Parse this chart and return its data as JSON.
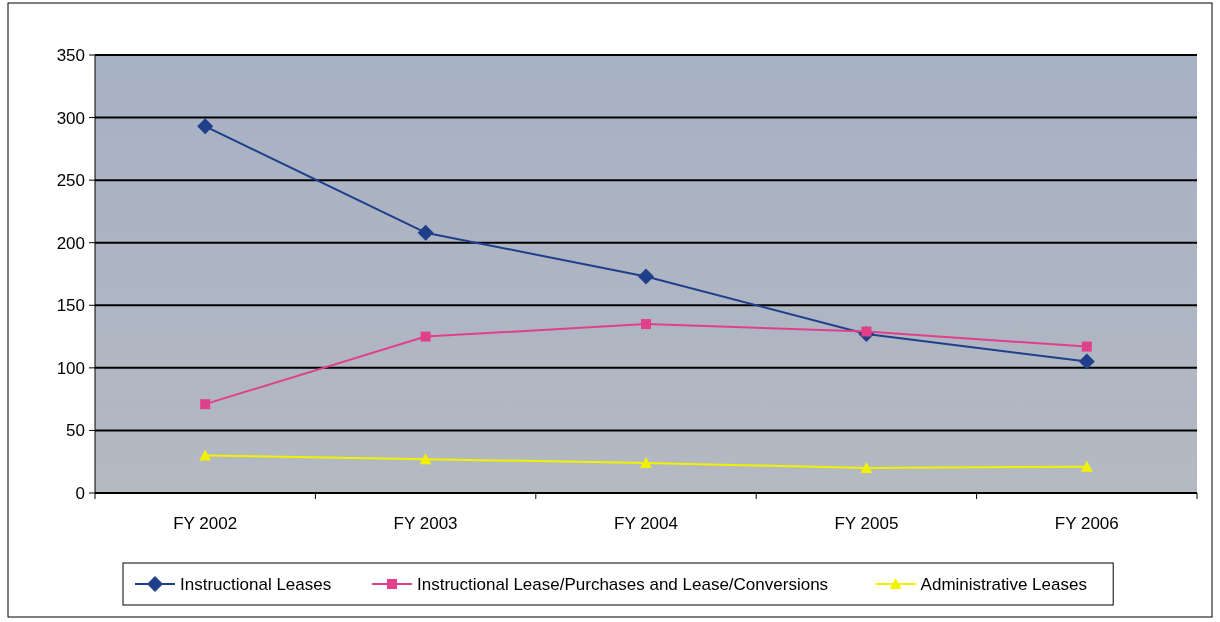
{
  "chart_data": {
    "type": "line",
    "categories": [
      "FY 2002",
      "FY 2003",
      "FY 2004",
      "FY 2005",
      "FY 2006"
    ],
    "series": [
      {
        "name": "Instructional Leases",
        "color": "#1f3f8a",
        "values": [
          293,
          208,
          173,
          127,
          105
        ],
        "marker": "diamond"
      },
      {
        "name": "Instructional Lease/Purchases and Lease/Conversions",
        "color": "#e0408a",
        "values": [
          71,
          125,
          135,
          129,
          117
        ],
        "marker": "square"
      },
      {
        "name": "Administrative Leases",
        "color": "#f2f200",
        "values": [
          30,
          27,
          24,
          20,
          21
        ],
        "marker": "triangle"
      }
    ],
    "ylim": [
      0,
      350
    ],
    "yticks": [
      0,
      50,
      100,
      150,
      200,
      250,
      300,
      350
    ],
    "grid": "y",
    "legend": "bottom",
    "line_style": "solid"
  }
}
